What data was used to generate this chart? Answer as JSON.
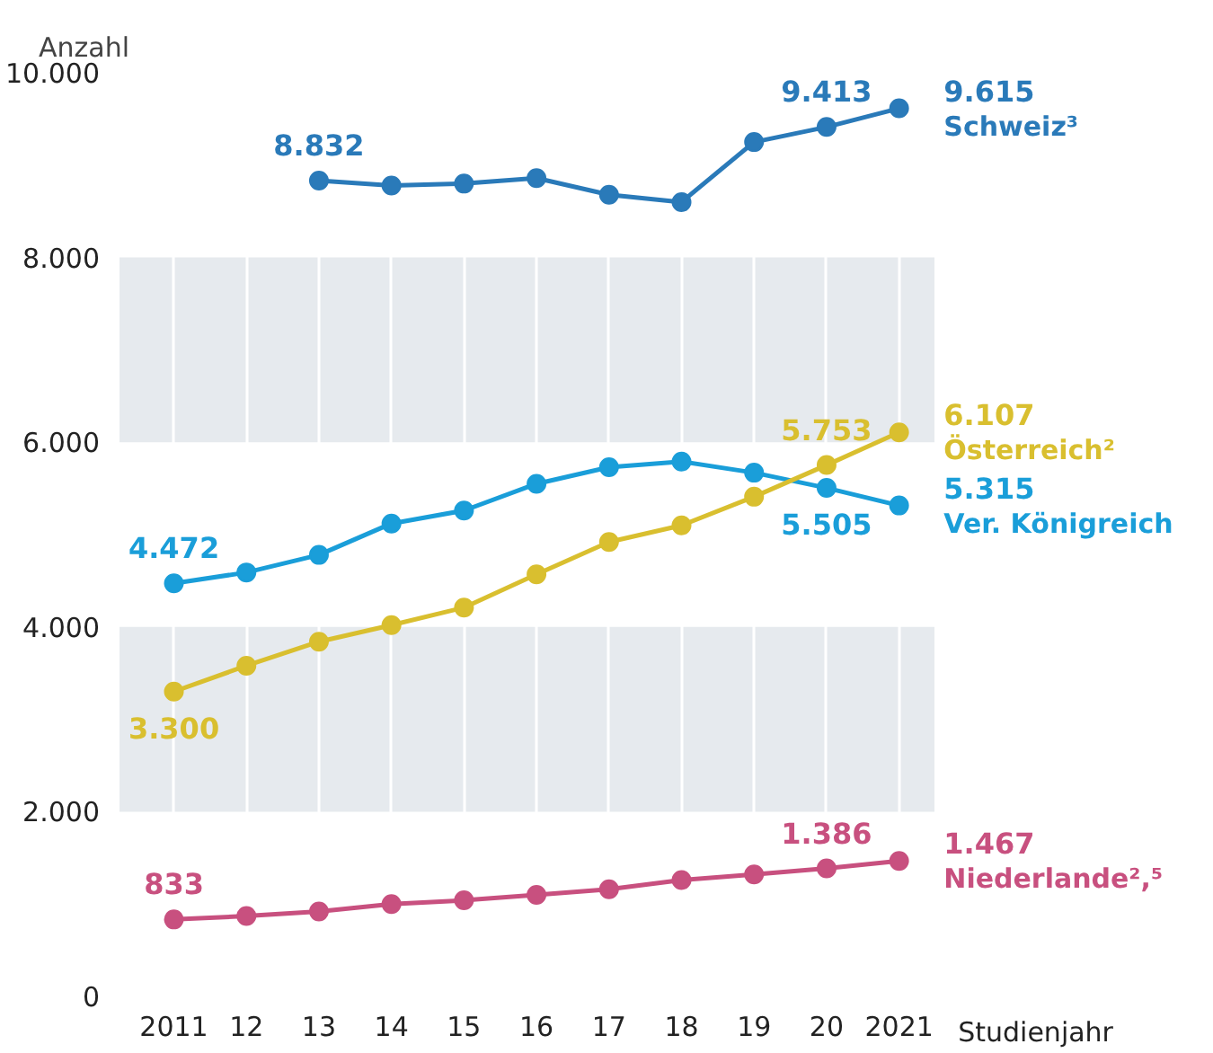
{
  "chart_data": {
    "type": "line",
    "ylabel": "Anzahl",
    "xlabel": "Studienjahr",
    "categories": [
      "2011",
      "12",
      "13",
      "14",
      "15",
      "16",
      "17",
      "18",
      "19",
      "20",
      "2021"
    ],
    "ylim": [
      0,
      10000
    ],
    "yticks": [
      {
        "value": 0,
        "label": "0"
      },
      {
        "value": 2000,
        "label": "2.000"
      },
      {
        "value": 4000,
        "label": "4.000"
      },
      {
        "value": 6000,
        "label": "6.000"
      },
      {
        "value": 8000,
        "label": "8.000"
      },
      {
        "value": 10000,
        "label": "10.000"
      }
    ],
    "grid": true,
    "marker": "circle",
    "line_style": "solid",
    "series": [
      {
        "name": "Schweiz³",
        "color": "#2a7ab9",
        "values": [
          null,
          null,
          8832,
          8780,
          8800,
          8860,
          8680,
          8600,
          9250,
          9413,
          9615
        ],
        "value_labels": [
          null,
          null,
          "8.832",
          null,
          null,
          null,
          null,
          null,
          null,
          "9.413",
          "9.615"
        ]
      },
      {
        "name": "Ver. Königreich",
        "color": "#1a9ed9",
        "values": [
          4472,
          4590,
          4780,
          5120,
          5260,
          5550,
          5730,
          5790,
          5670,
          5505,
          5315
        ],
        "value_labels": [
          "4.472",
          null,
          null,
          null,
          null,
          null,
          null,
          null,
          null,
          "5.505",
          "5.315"
        ]
      },
      {
        "name": "Österreich²",
        "color": "#d9bf2f",
        "values": [
          3300,
          3580,
          3840,
          4020,
          4210,
          4570,
          4920,
          5100,
          5410,
          5753,
          6107
        ],
        "value_labels": [
          "3.300",
          null,
          null,
          null,
          null,
          null,
          null,
          null,
          null,
          "5.753",
          "6.107"
        ]
      },
      {
        "name": "Niederlande²,⁵",
        "color": "#c8507f",
        "values": [
          833,
          870,
          920,
          1000,
          1040,
          1100,
          1160,
          1260,
          1320,
          1386,
          1467
        ],
        "value_labels": [
          "833",
          null,
          null,
          null,
          null,
          null,
          null,
          null,
          null,
          "1.386",
          "1.467"
        ]
      }
    ]
  }
}
